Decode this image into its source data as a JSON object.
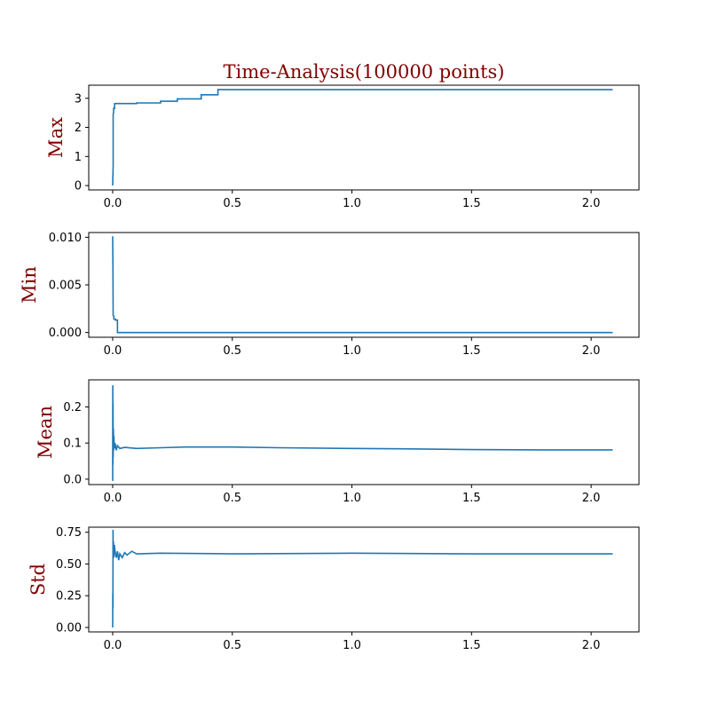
{
  "chart_data": {
    "type": "line",
    "title": "Time-Analysis(100000 points)",
    "title_color": "#800000",
    "label_color": "#800000",
    "line_color": "#1f77b4",
    "x_ticks": [
      "0.0",
      "0.5",
      "1.0",
      "1.5",
      "2.0"
    ],
    "xlim": [
      -0.1,
      2.2
    ],
    "panels": [
      {
        "name": "Max",
        "ylabel": "Max",
        "ylim": [
          -0.15,
          3.45
        ],
        "y_ticks": [
          0,
          1,
          2,
          3
        ],
        "y_tick_labels": [
          "0",
          "1",
          "2",
          "3"
        ],
        "x": [
          0.0,
          0.002,
          0.002,
          0.004,
          0.004,
          0.008,
          0.008,
          0.1,
          0.1,
          0.2,
          0.2,
          0.27,
          0.27,
          0.37,
          0.37,
          0.44,
          0.44,
          2.09
        ],
        "y": [
          0.0,
          0.7,
          2.45,
          2.5,
          2.65,
          2.65,
          2.82,
          2.82,
          2.84,
          2.84,
          2.9,
          2.9,
          2.98,
          2.98,
          3.12,
          3.12,
          3.3,
          3.3
        ]
      },
      {
        "name": "Min",
        "ylabel": "Min",
        "ylim": [
          -0.0005,
          0.0105
        ],
        "y_ticks": [
          0.0,
          0.005,
          0.01
        ],
        "y_tick_labels": [
          "0.000",
          "0.005",
          "0.010"
        ],
        "x": [
          0.0,
          0.001,
          0.002,
          0.005,
          0.005,
          0.012,
          0.012,
          0.02,
          0.02,
          2.09
        ],
        "y": [
          0.0101,
          0.007,
          0.0018,
          0.0017,
          0.0014,
          0.0014,
          0.0013,
          0.0013,
          0.0,
          0.0
        ]
      },
      {
        "name": "Mean",
        "ylabel": "Mean",
        "ylim": [
          -0.015,
          0.275
        ],
        "y_ticks": [
          0.0,
          0.1,
          0.2
        ],
        "y_tick_labels": [
          "0.0",
          "0.1",
          "0.2"
        ],
        "x": [
          0.0,
          0.0005,
          0.001,
          0.0015,
          0.002,
          0.003,
          0.004,
          0.005,
          0.007,
          0.01,
          0.015,
          0.02,
          0.03,
          0.05,
          0.1,
          0.2,
          0.3,
          0.5,
          0.7,
          1.0,
          1.2,
          1.5,
          1.8,
          2.09
        ],
        "y": [
          -0.005,
          0.26,
          0.04,
          0.21,
          0.06,
          0.14,
          0.08,
          0.12,
          0.085,
          0.1,
          0.08,
          0.093,
          0.085,
          0.088,
          0.085,
          0.087,
          0.089,
          0.089,
          0.087,
          0.085,
          0.084,
          0.082,
          0.081,
          0.081
        ]
      },
      {
        "name": "Std",
        "ylabel": "Std",
        "ylim": [
          -0.035,
          0.79
        ],
        "y_ticks": [
          0.0,
          0.25,
          0.5,
          0.75
        ],
        "y_tick_labels": [
          "0.00",
          "0.25",
          "0.50",
          "0.75"
        ],
        "x": [
          0.0,
          0.0005,
          0.001,
          0.0015,
          0.002,
          0.003,
          0.005,
          0.007,
          0.01,
          0.015,
          0.02,
          0.025,
          0.03,
          0.04,
          0.05,
          0.06,
          0.08,
          0.1,
          0.2,
          0.5,
          1.0,
          1.5,
          2.09
        ],
        "y": [
          0.0,
          0.27,
          0.15,
          0.77,
          0.6,
          0.68,
          0.55,
          0.65,
          0.6,
          0.55,
          0.6,
          0.53,
          0.58,
          0.55,
          0.59,
          0.57,
          0.6,
          0.58,
          0.585,
          0.58,
          0.585,
          0.58,
          0.58
        ]
      }
    ]
  }
}
